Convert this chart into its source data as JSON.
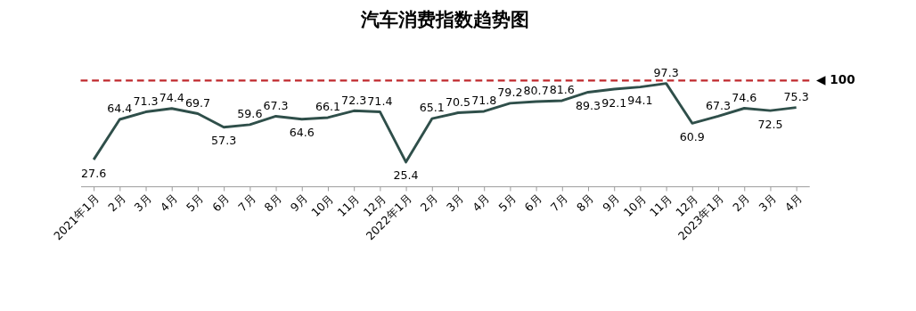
{
  "chart_data": {
    "type": "line",
    "title": "汽车消费指数趋势图",
    "categories": [
      "2021年1月",
      "2月",
      "3月",
      "4月",
      "5月",
      "6月",
      "7月",
      "8月",
      "9月",
      "10月",
      "11月",
      "12月",
      "2022年1月",
      "2月",
      "3月",
      "4月",
      "5月",
      "6月",
      "7月",
      "8月",
      "9月",
      "10月",
      "11月",
      "12月",
      "2023年1月",
      "2月",
      "3月",
      "4月"
    ],
    "series": [
      {
        "color": "#2f4f4a",
        "values": [
          27.6,
          64.4,
          71.3,
          74.4,
          69.7,
          57.3,
          59.6,
          67.3,
          64.6,
          66.1,
          72.3,
          71.4,
          25.4,
          65.1,
          70.5,
          71.8,
          79.2,
          80.7,
          81.6,
          89.3,
          92.1,
          94.1,
          97.3,
          60.9,
          67.3,
          74.6,
          72.5,
          75.3
        ]
      }
    ],
    "tick_labels": "x",
    "data_labels": true,
    "line_style": "solid",
    "ref_lines": [
      {
        "axis": "y",
        "value": 100,
        "label": "◀ 100",
        "color": "#c0282d",
        "line_style": "dashed"
      }
    ]
  }
}
